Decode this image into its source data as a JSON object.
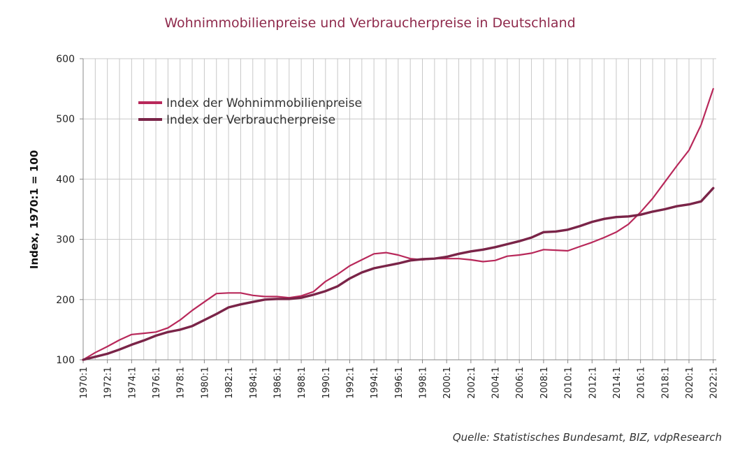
{
  "chart_data": {
    "type": "line",
    "title": "Wohnimmobilienpreise und Verbraucherpreise in Deutschland",
    "ylabel": "Index, 1970:1 = 100",
    "xlabel": "",
    "ylim": [
      100,
      600
    ],
    "yticks": [
      100,
      200,
      300,
      400,
      500,
      600
    ],
    "xlim": [
      1970,
      2022.25
    ],
    "xticks": [
      "1970:1",
      "1972:1",
      "1974:1",
      "1976:1",
      "1978:1",
      "1980:1",
      "1982:1",
      "1984:1",
      "1986:1",
      "1988:1",
      "1990:1",
      "1992:1",
      "1994:1",
      "1996:1",
      "1998:1",
      "2000:1",
      "2002:1",
      "2004:1",
      "2006:1",
      "2008:1",
      "2010:1",
      "2012:1",
      "2014:1",
      "2016:1",
      "2018:1",
      "2020:1",
      "2022:1"
    ],
    "grid": true,
    "legend_position": "top-left",
    "series": [
      {
        "name": "Index der Wohnimmobilienpreise",
        "color": "#b8285a",
        "points": [
          [
            1970,
            100
          ],
          [
            1971,
            112
          ],
          [
            1972,
            122
          ],
          [
            1973,
            133
          ],
          [
            1974,
            142
          ],
          [
            1975,
            144
          ],
          [
            1976,
            146
          ],
          [
            1977,
            153
          ],
          [
            1978,
            166
          ],
          [
            1979,
            182
          ],
          [
            1980,
            196
          ],
          [
            1981,
            210
          ],
          [
            1982,
            211
          ],
          [
            1983,
            211
          ],
          [
            1984,
            207
          ],
          [
            1985,
            205
          ],
          [
            1986,
            205
          ],
          [
            1987,
            203
          ],
          [
            1988,
            206
          ],
          [
            1989,
            213
          ],
          [
            1990,
            230
          ],
          [
            1991,
            242
          ],
          [
            1992,
            256
          ],
          [
            1993,
            266
          ],
          [
            1994,
            276
          ],
          [
            1995,
            278
          ],
          [
            1996,
            274
          ],
          [
            1997,
            268
          ],
          [
            1998,
            266
          ],
          [
            1999,
            268
          ],
          [
            2000,
            268
          ],
          [
            2001,
            268
          ],
          [
            2002,
            266
          ],
          [
            2003,
            263
          ],
          [
            2004,
            265
          ],
          [
            2005,
            272
          ],
          [
            2006,
            274
          ],
          [
            2007,
            277
          ],
          [
            2008,
            283
          ],
          [
            2009,
            282
          ],
          [
            2010,
            281
          ],
          [
            2011,
            288
          ],
          [
            2012,
            295
          ],
          [
            2013,
            303
          ],
          [
            2014,
            312
          ],
          [
            2015,
            325
          ],
          [
            2016,
            345
          ],
          [
            2017,
            368
          ],
          [
            2018,
            395
          ],
          [
            2019,
            422
          ],
          [
            2020,
            448
          ],
          [
            2021,
            490
          ],
          [
            2022,
            550
          ]
        ]
      },
      {
        "name": "Index der Verbraucherpreise",
        "color": "#7a2448",
        "points": [
          [
            1970,
            100
          ],
          [
            1971,
            105
          ],
          [
            1972,
            110
          ],
          [
            1973,
            117
          ],
          [
            1974,
            125
          ],
          [
            1975,
            132
          ],
          [
            1976,
            140
          ],
          [
            1977,
            146
          ],
          [
            1978,
            150
          ],
          [
            1979,
            156
          ],
          [
            1980,
            166
          ],
          [
            1981,
            176
          ],
          [
            1982,
            187
          ],
          [
            1983,
            192
          ],
          [
            1984,
            196
          ],
          [
            1985,
            200
          ],
          [
            1986,
            201
          ],
          [
            1987,
            201
          ],
          [
            1988,
            203
          ],
          [
            1989,
            208
          ],
          [
            1990,
            214
          ],
          [
            1991,
            222
          ],
          [
            1992,
            235
          ],
          [
            1993,
            245
          ],
          [
            1994,
            252
          ],
          [
            1995,
            256
          ],
          [
            1996,
            260
          ],
          [
            1997,
            265
          ],
          [
            1998,
            267
          ],
          [
            1999,
            268
          ],
          [
            2000,
            271
          ],
          [
            2001,
            276
          ],
          [
            2002,
            280
          ],
          [
            2003,
            283
          ],
          [
            2004,
            287
          ],
          [
            2005,
            292
          ],
          [
            2006,
            297
          ],
          [
            2007,
            303
          ],
          [
            2008,
            312
          ],
          [
            2009,
            313
          ],
          [
            2010,
            316
          ],
          [
            2011,
            322
          ],
          [
            2012,
            329
          ],
          [
            2013,
            334
          ],
          [
            2014,
            337
          ],
          [
            2015,
            338
          ],
          [
            2016,
            341
          ],
          [
            2017,
            346
          ],
          [
            2018,
            350
          ],
          [
            2019,
            355
          ],
          [
            2020,
            358
          ],
          [
            2021,
            363
          ],
          [
            2022,
            385
          ]
        ]
      }
    ]
  },
  "source": "Quelle: Statistisches Bundesamt, BIZ, vdpResearch"
}
